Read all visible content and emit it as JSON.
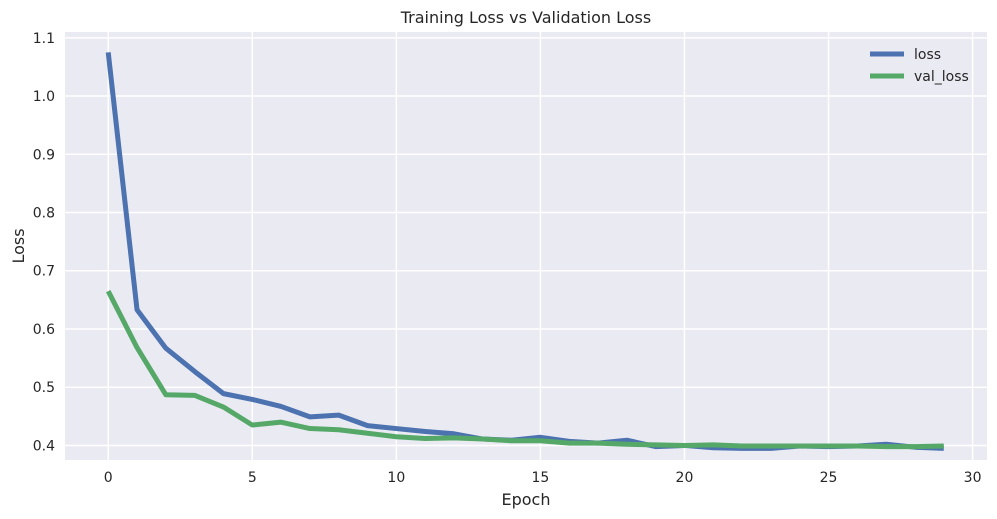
{
  "chart_data": {
    "type": "line",
    "title": "Training Loss vs Validation Loss",
    "xlabel": "Epoch",
    "ylabel": "Loss",
    "xlim": [
      -1.5,
      30.5
    ],
    "ylim": [
      0.375,
      1.11
    ],
    "x_ticks": [
      0,
      5,
      10,
      15,
      20,
      25,
      30
    ],
    "y_ticks": [
      0.4,
      0.5,
      0.6,
      0.7,
      0.8,
      0.9,
      1.0,
      1.1
    ],
    "x_tick_labels": [
      "0",
      "5",
      "10",
      "15",
      "20",
      "25",
      "30"
    ],
    "y_tick_labels": [
      "0.4",
      "0.5",
      "0.6",
      "0.7",
      "0.8",
      "0.9",
      "1.0",
      "1.1"
    ],
    "grid": true,
    "legend_position": "top-right",
    "x": [
      0,
      1,
      2,
      3,
      4,
      5,
      6,
      7,
      8,
      9,
      10,
      11,
      12,
      13,
      14,
      15,
      16,
      17,
      18,
      19,
      20,
      21,
      22,
      23,
      24,
      25,
      26,
      27,
      28,
      29
    ],
    "series": [
      {
        "name": "loss",
        "color": "#4c72b0",
        "values": [
          1.075,
          0.633,
          0.567,
          0.527,
          0.489,
          0.479,
          0.467,
          0.449,
          0.452,
          0.434,
          0.429,
          0.424,
          0.42,
          0.411,
          0.409,
          0.414,
          0.407,
          0.404,
          0.409,
          0.398,
          0.4,
          0.396,
          0.395,
          0.395,
          0.399,
          0.398,
          0.399,
          0.402,
          0.397,
          0.395
        ]
      },
      {
        "name": "val_loss",
        "color": "#55a868",
        "values": [
          0.665,
          0.568,
          0.487,
          0.486,
          0.466,
          0.435,
          0.44,
          0.429,
          0.427,
          0.421,
          0.415,
          0.412,
          0.413,
          0.411,
          0.408,
          0.408,
          0.404,
          0.404,
          0.402,
          0.401,
          0.4,
          0.401,
          0.399,
          0.399,
          0.399,
          0.399,
          0.399,
          0.398,
          0.398,
          0.399
        ]
      }
    ]
  }
}
